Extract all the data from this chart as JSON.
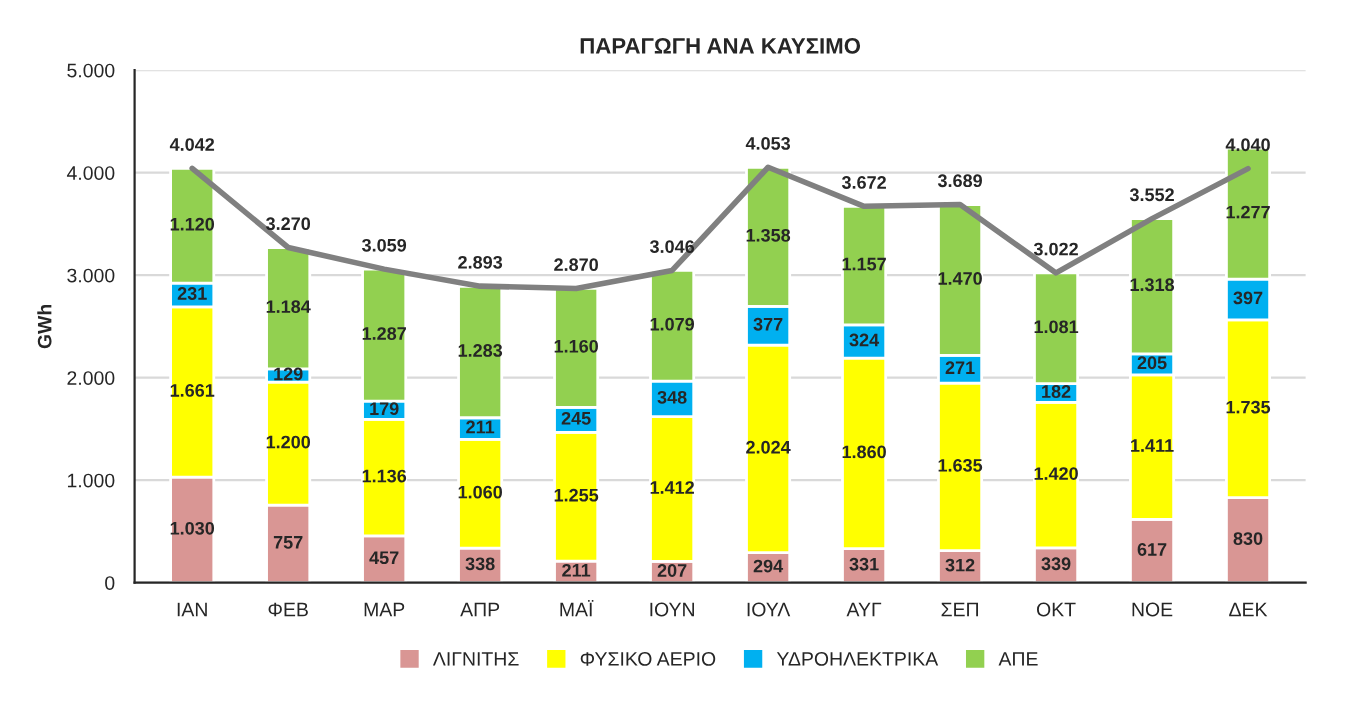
{
  "chart_data": {
    "type": "bar",
    "title": "ΠΑΡΑΓΩΓΗ ΑΝΑ ΚΑΥΣΙΜΟ",
    "ylabel": "GWh",
    "stacked": true,
    "grid": "y",
    "legend": "bottom",
    "marker": "none",
    "categories": [
      "ΙΑΝ",
      "ΦΕΒ",
      "ΜΑΡ",
      "ΑΠΡ",
      "ΜΑΪ",
      "ΙΟΥΝ",
      "ΙΟΥΛ",
      "ΑΥΓ",
      "ΣΕΠ",
      "ΟΚΤ",
      "ΝΟΕ",
      "ΔΕΚ"
    ],
    "ylim": [
      0,
      5000
    ],
    "yticks": [
      {
        "value": 0,
        "label": "0"
      },
      {
        "value": 1000,
        "label": "1.000"
      },
      {
        "value": 2000,
        "label": "2.000"
      },
      {
        "value": 3000,
        "label": "3.000"
      },
      {
        "value": 4000,
        "label": "4.000"
      },
      {
        "value": 5000,
        "label": "5.000"
      }
    ],
    "series": [
      {
        "name": "ΛΙΓΝΙΤΗΣ",
        "color": "#d99694",
        "values": [
          1030,
          757,
          457,
          338,
          211,
          207,
          294,
          331,
          312,
          339,
          617,
          830
        ],
        "value_labels": [
          "1.030",
          "757",
          "457",
          "338",
          "211",
          "207",
          "294",
          "331",
          "312",
          "339",
          "617",
          "830"
        ]
      },
      {
        "name": "ΦΥΣΙΚΟ ΑΕΡΙΟ",
        "color": "#ffff00",
        "values": [
          1661,
          1200,
          1136,
          1060,
          1255,
          1412,
          2024,
          1860,
          1635,
          1420,
          1411,
          1735
        ],
        "value_labels": [
          "1.661",
          "1.200",
          "1.136",
          "1.060",
          "1.255",
          "1.412",
          "2.024",
          "1.860",
          "1.635",
          "1.420",
          "1.411",
          "1.735"
        ]
      },
      {
        "name": "ΥΔΡΟΗΛΕΚΤΡΙΚΑ",
        "color": "#00b0f0",
        "values": [
          231,
          129,
          179,
          211,
          245,
          348,
          377,
          324,
          271,
          182,
          205,
          397
        ],
        "value_labels": [
          "231",
          "129",
          "179",
          "211",
          "245",
          "348",
          "377",
          "324",
          "271",
          "182",
          "205",
          "397"
        ]
      },
      {
        "name": "ΑΠΕ",
        "color": "#92d050",
        "values": [
          1120,
          1184,
          1287,
          1283,
          1160,
          1079,
          1358,
          1157,
          1470,
          1081,
          1318,
          1277
        ],
        "value_labels": [
          "1.120",
          "1.184",
          "1.287",
          "1.283",
          "1.160",
          "1.079",
          "1.358",
          "1.157",
          "1.470",
          "1.081",
          "1.318",
          "1.277"
        ]
      },
      {
        "type": "line",
        "color": "#808080",
        "values": [
          4042,
          3270,
          3059,
          2893,
          2870,
          3046,
          4053,
          3672,
          3689,
          3022,
          3552,
          4040
        ],
        "value_labels": [
          "4.042",
          "3.270",
          "3.059",
          "2.893",
          "2.870",
          "3.046",
          "4.053",
          "3.672",
          "3.689",
          "3.022",
          "3.552",
          "4.040"
        ]
      }
    ]
  }
}
